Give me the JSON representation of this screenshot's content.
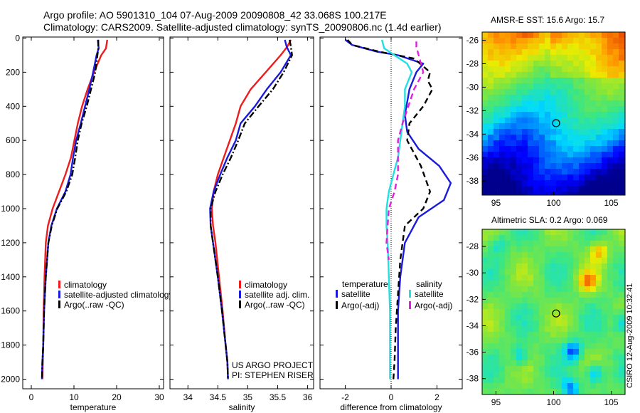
{
  "header": {
    "line1": "Argo profile: AO 5901310_104 07-Aug-2009 20090808_42 33.068S 100.217E",
    "line2": "Climatology: CARS2009. Satellite-adjusted climatology: synTS_20090806.nc (1.4d earlier)"
  },
  "credit": "CSIRO 12-Aug-2009 10:32:41",
  "colors": {
    "climatology": "#ee1c1c",
    "satellite": "#1a1adc",
    "argo": "#000000",
    "satellite_salinity": "#22e0e0",
    "argo_salinity": "#e020e0"
  },
  "chart_data": [
    {
      "type": "line",
      "xlabel": "temperature",
      "xlim": [
        -2,
        31
      ],
      "ylim": [
        2000,
        0
      ],
      "xticks": [
        "0",
        "10",
        "20",
        "30"
      ],
      "yticks": [
        "0",
        "200",
        "400",
        "600",
        "800",
        "1000",
        "1200",
        "1400",
        "1600",
        "1800",
        "2000"
      ],
      "legend": [
        "climatology",
        "satellite-adjusted climatology",
        "Argo(..raw -QC)"
      ],
      "legend_position": "lower-right",
      "series": [
        {
          "name": "climatology",
          "style": "solid",
          "color": "#ee1c1c",
          "x": [
            17.8,
            17.5,
            16.4,
            14.7,
            13.2,
            11.9,
            10.9,
            10.1,
            9.3,
            8.0,
            6.5,
            5.0,
            3.9,
            3.4,
            3.1,
            2.9,
            2.8,
            2.7,
            2.6
          ],
          "y": [
            10,
            60,
            100,
            200,
            300,
            400,
            500,
            600,
            700,
            800,
            900,
            1000,
            1100,
            1200,
            1400,
            1600,
            1800,
            1900,
            2000
          ]
        },
        {
          "name": "satellite-adjusted climatology",
          "style": "solid",
          "color": "#1a1adc",
          "x": [
            15.6,
            15.8,
            15.3,
            14.5,
            13.6,
            12.6,
            11.6,
            10.5,
            9.8,
            9.2,
            8.0,
            6.0,
            4.7,
            4.0,
            3.4,
            3.0,
            2.8,
            2.6,
            2.5
          ],
          "y": [
            10,
            60,
            100,
            200,
            300,
            400,
            500,
            600,
            700,
            800,
            900,
            1000,
            1100,
            1200,
            1400,
            1600,
            1800,
            1900,
            2000
          ]
        },
        {
          "name": "Argo(..raw -QC)",
          "style": "dashdot",
          "color": "#000000",
          "x": [
            15.7,
            15.7,
            15.5,
            15.0,
            14.0,
            13.0,
            11.8,
            10.9,
            10.3,
            9.6,
            8.2,
            6.1,
            4.8,
            4.0,
            3.4,
            3.0,
            2.8,
            2.6,
            2.5
          ],
          "y": [
            10,
            60,
            100,
            200,
            300,
            400,
            500,
            600,
            700,
            800,
            900,
            1000,
            1100,
            1200,
            1400,
            1600,
            1800,
            1900,
            2000
          ]
        }
      ]
    },
    {
      "type": "line",
      "xlabel": "salinity",
      "xlim": [
        33.7,
        36.1
      ],
      "ylim": [
        2000,
        0
      ],
      "xticks": [
        "34",
        "34.5",
        "35",
        "35.5",
        "36"
      ],
      "legend": [
        "climatology",
        "satellite adj. clim.",
        "Argo(..raw -QC)"
      ],
      "legend_position": "lower-right",
      "annotation": [
        "US ARGO PROJECT",
        "PI: STEPHEN RISER"
      ],
      "series": [
        {
          "name": "climatology",
          "style": "solid",
          "color": "#ee1c1c",
          "x": [
            35.72,
            35.66,
            35.55,
            35.3,
            35.05,
            34.88,
            34.8,
            34.7,
            34.6,
            34.5,
            34.43,
            34.4,
            34.42,
            34.46,
            34.52,
            34.58,
            34.63,
            34.66,
            34.67
          ],
          "y": [
            10,
            50,
            100,
            200,
            300,
            400,
            500,
            600,
            700,
            800,
            900,
            1000,
            1100,
            1200,
            1400,
            1600,
            1800,
            1900,
            2000
          ]
        },
        {
          "name": "satellite adj. clim.",
          "style": "solid",
          "color": "#1a1adc",
          "x": [
            35.62,
            35.65,
            35.72,
            35.55,
            35.32,
            35.12,
            34.88,
            34.8,
            34.66,
            34.54,
            34.43,
            34.37,
            34.38,
            34.42,
            34.5,
            34.57,
            34.63,
            34.66,
            34.67
          ],
          "y": [
            10,
            50,
            100,
            200,
            300,
            400,
            500,
            600,
            700,
            800,
            900,
            1000,
            1100,
            1200,
            1400,
            1600,
            1800,
            1900,
            2000
          ]
        },
        {
          "name": "Argo(..raw -QC)",
          "style": "dashdot",
          "color": "#000000",
          "x": [
            35.7,
            35.72,
            35.74,
            35.6,
            35.42,
            35.18,
            34.95,
            34.84,
            34.72,
            34.58,
            34.46,
            34.38,
            34.38,
            34.42,
            34.5,
            34.57,
            34.63,
            34.66,
            34.67
          ],
          "y": [
            10,
            50,
            100,
            200,
            300,
            400,
            500,
            600,
            700,
            800,
            900,
            1000,
            1100,
            1200,
            1400,
            1600,
            1800,
            1900,
            2000
          ]
        }
      ]
    },
    {
      "type": "line",
      "xlabel": "difference from climatology",
      "xlim": [
        -3.1,
        3.1
      ],
      "ylim": [
        2000,
        0
      ],
      "xticks": [
        "-2",
        "0",
        "2"
      ],
      "legend_groups": [
        {
          "title": "temperature",
          "entries": [
            "satellite",
            "Argo(-adj)"
          ]
        },
        {
          "title": "salinity",
          "entries": [
            "satellite",
            "Argo(-adj)"
          ]
        }
      ],
      "legend_position": "lower-center",
      "series": [
        {
          "name": "temperature satellite",
          "style": "solid",
          "color": "#1a1adc",
          "x": [
            -2.0,
            -1.7,
            -0.6,
            0.3,
            1.4,
            1.1,
            0.8,
            0.6,
            0.7,
            1.2,
            2.1,
            2.6,
            2.3,
            1.2,
            0.6,
            0.4,
            0.3,
            0.3,
            0.3
          ],
          "y": [
            10,
            40,
            80,
            100,
            150,
            200,
            300,
            450,
            550,
            650,
            750,
            850,
            950,
            1050,
            1200,
            1400,
            1600,
            1800,
            2000
          ]
        },
        {
          "name": "temperature Argo(-adj)",
          "style": "dashed",
          "color": "#000000",
          "x": [
            -1.9,
            -1.7,
            -0.5,
            1.0,
            1.7,
            1.6,
            1.8,
            1.4,
            0.8,
            0.7,
            1.3,
            1.7,
            1.4,
            0.6,
            0.4,
            0.3,
            0.2,
            0.15,
            0.1
          ],
          "y": [
            10,
            40,
            80,
            120,
            200,
            250,
            300,
            400,
            500,
            600,
            750,
            900,
            1000,
            1100,
            1300,
            1500,
            1700,
            1900,
            2000
          ]
        },
        {
          "name": "salinity satellite",
          "style": "solid",
          "color": "#22e0e0",
          "x": [
            -0.4,
            -0.3,
            0.7,
            0.9,
            0.6,
            0.6,
            0.5,
            0.4,
            0.3,
            0.1,
            -0.1,
            -0.2,
            -0.2,
            -0.15,
            -0.1,
            -0.05,
            -0.05,
            -0.05
          ],
          "y": [
            10,
            60,
            150,
            200,
            300,
            400,
            500,
            600,
            700,
            800,
            900,
            1000,
            1100,
            1200,
            1400,
            1600,
            1800,
            2000
          ]
        },
        {
          "name": "salinity Argo(-adj)",
          "style": "dashed",
          "color": "#e020e0",
          "x": [
            1.1,
            1.1,
            1.4,
            1.0,
            0.7,
            0.5,
            0.3,
            0.3,
            0.3,
            0.15,
            -0.1,
            -0.2,
            -0.1
          ],
          "y": [
            20,
            50,
            200,
            300,
            420,
            500,
            600,
            700,
            800,
            900,
            1000,
            1200,
            1300
          ]
        }
      ]
    },
    {
      "type": "heatmap",
      "title": "AMSR-E SST: 15.6 Argo: 15.7",
      "xlim": [
        93.8,
        106.2
      ],
      "ylim": [
        -39.2,
        -25.3
      ],
      "xticks": [
        "95",
        "100",
        "105"
      ],
      "yticks": [
        "-26",
        "-28",
        "-30",
        "-32",
        "-34",
        "-36",
        "-38"
      ],
      "marker": {
        "lon": 100.217,
        "lat": -33.068
      }
    },
    {
      "type": "heatmap",
      "title": "Altimetric SLA: 0.2 Argo: 0.069",
      "xlim": [
        93.8,
        106.2
      ],
      "ylim": [
        -39.2,
        -26.7
      ],
      "xticks": [
        "95",
        "100",
        "105"
      ],
      "yticks": [
        "-28",
        "-30",
        "-32",
        "-34",
        "-36",
        "-38"
      ],
      "marker": {
        "lon": 100.217,
        "lat": -33.068
      }
    }
  ]
}
